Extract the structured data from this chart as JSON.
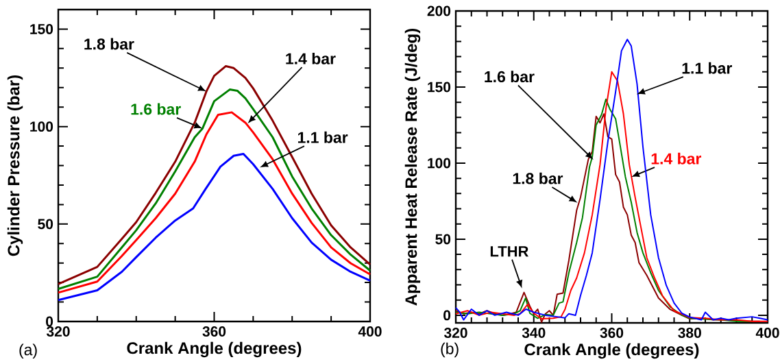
{
  "chart_data": [
    {
      "type": "line",
      "xlabel": "Crank Angle (degrees)",
      "ylabel": "Cylinder Pressure (bar)",
      "xlim": [
        320,
        400
      ],
      "ylim": [
        0,
        160
      ],
      "xticks": [
        320,
        {
          "value": 330,
          "label": null
        },
        {
          "value": 340,
          "label": null
        },
        {
          "value": 350,
          "label": null
        },
        360,
        {
          "value": 370,
          "label": null
        },
        {
          "value": 380,
          "label": null
        },
        {
          "value": 390,
          "label": null
        },
        400
      ],
      "yticks": [
        0,
        {
          "value": 10,
          "label": null
        },
        {
          "value": 20,
          "label": null
        },
        {
          "value": 30,
          "label": null
        },
        {
          "value": 40,
          "label": null
        },
        50,
        {
          "value": 60,
          "label": null
        },
        {
          "value": 70,
          "label": null
        },
        {
          "value": 80,
          "label": null
        },
        {
          "value": 90,
          "label": null
        },
        100,
        {
          "value": 110,
          "label": null
        },
        {
          "value": 120,
          "label": null
        },
        {
          "value": 130,
          "label": null
        },
        {
          "value": 140,
          "label": null
        },
        150
      ],
      "series": [
        {
          "name": "1.8 bar",
          "color": "#8b0000",
          "x": [
            320,
            330,
            336.3,
            340,
            345,
            350,
            355,
            358,
            360,
            363,
            365,
            368,
            370,
            375,
            380,
            385,
            390,
            395,
            400
          ],
          "values": [
            19.2,
            28,
            42.4,
            51,
            66,
            82,
            102,
            118,
            126,
            131,
            130,
            125,
            119.6,
            103,
            84.4,
            65.6,
            49.3,
            38,
            29.2
          ]
        },
        {
          "name": "1.6 bar",
          "color": "#008000",
          "x": [
            320,
            330,
            336.3,
            340,
            345,
            350,
            355,
            357,
            360,
            364,
            366,
            368,
            370,
            375,
            380,
            385,
            390,
            395,
            400
          ],
          "values": [
            16.7,
            23,
            38,
            46.8,
            60.6,
            77,
            94.5,
            99,
            113,
            119,
            118.3,
            114.5,
            109,
            94.5,
            74.4,
            58,
            44.3,
            34.3,
            26.1
          ]
        },
        {
          "name": "1.4 bar",
          "color": "#ff0000",
          "x": [
            320,
            330,
            336.3,
            340,
            345,
            350,
            355,
            358,
            361,
            364.5,
            368,
            370,
            375,
            380,
            385,
            390,
            395,
            400
          ],
          "values": [
            14.8,
            20.5,
            33.6,
            41.8,
            53,
            65.6,
            82,
            96,
            106,
            107.3,
            102,
            97,
            83.2,
            65.6,
            50.6,
            38,
            29.9,
            24.2
          ]
        },
        {
          "name": "1.1 bar",
          "color": "#0000ff",
          "x": [
            320,
            330,
            336.3,
            340,
            345,
            350,
            354.6,
            357.8,
            361.6,
            365,
            367.5,
            370,
            375,
            380,
            385,
            390,
            395,
            400
          ],
          "values": [
            11,
            16,
            25.5,
            33,
            43,
            51.8,
            58,
            68,
            79.4,
            85,
            86,
            80.7,
            68,
            53,
            40.5,
            31.7,
            25.5,
            21
          ]
        }
      ],
      "annotations": [
        "(a)"
      ]
    },
    {
      "type": "line",
      "xlabel": "Crank Angle (degrees)",
      "ylabel": "Apparent Heat Release Rate (J/deg)",
      "xlim": [
        320,
        400
      ],
      "ylim": [
        -5,
        200
      ],
      "xticks": [
        320,
        {
          "value": 324,
          "label": null
        },
        {
          "value": 328,
          "label": null
        },
        {
          "value": 332,
          "label": null
        },
        {
          "value": 336,
          "label": null
        },
        340,
        {
          "value": 344,
          "label": null
        },
        {
          "value": 348,
          "label": null
        },
        {
          "value": 352,
          "label": null
        },
        {
          "value": 356,
          "label": null
        },
        360,
        {
          "value": 364,
          "label": null
        },
        {
          "value": 368,
          "label": null
        },
        {
          "value": 372,
          "label": null
        },
        {
          "value": 376,
          "label": null
        },
        380,
        {
          "value": 384,
          "label": null
        },
        {
          "value": 388,
          "label": null
        },
        {
          "value": 392,
          "label": null
        },
        {
          "value": 396,
          "label": null
        },
        400
      ],
      "yticks": [
        0,
        {
          "value": 10,
          "label": null
        },
        {
          "value": 20,
          "label": null
        },
        {
          "value": 30,
          "label": null
        },
        {
          "value": 40,
          "label": null
        },
        50,
        {
          "value": 60,
          "label": null
        },
        {
          "value": 70,
          "label": null
        },
        {
          "value": 80,
          "label": null
        },
        {
          "value": 90,
          "label": null
        },
        100,
        {
          "value": 110,
          "label": null
        },
        {
          "value": 120,
          "label": null
        },
        {
          "value": 130,
          "label": null
        },
        {
          "value": 140,
          "label": null
        },
        150,
        {
          "value": 160,
          "label": null
        },
        {
          "value": 170,
          "label": null
        },
        {
          "value": 180,
          "label": null
        },
        {
          "value": 190,
          "label": null
        },
        200
      ],
      "series": [
        {
          "name": "1.8 bar",
          "color": "#8b0000",
          "x": [
            320,
            322,
            324,
            326,
            328,
            330,
            332,
            334,
            335.5,
            337.5,
            339,
            340,
            341,
            342,
            343,
            344,
            345,
            346,
            347.5,
            349,
            351,
            352,
            354,
            355,
            356,
            357,
            358,
            359,
            360,
            361,
            362,
            363,
            364,
            365,
            366,
            367,
            369,
            372,
            375,
            378,
            380,
            383,
            386,
            389,
            392,
            394,
            396,
            398
          ],
          "values": [
            3,
            1,
            2,
            1,
            3,
            1,
            0,
            1,
            2,
            15,
            6,
            1,
            4,
            -4.5,
            1,
            3,
            0,
            13.8,
            14.6,
            36,
            69,
            77.6,
            102.5,
            107.5,
            130.7,
            126.5,
            132.3,
            117.4,
            115.8,
            92.5,
            87.6,
            71,
            66,
            52.7,
            47.8,
            34.5,
            26.2,
            11.3,
            3.8,
            0,
            -2.3,
            -2,
            -3,
            -3,
            null,
            -4,
            null,
            -4
          ]
        },
        {
          "name": "1.6 bar",
          "color": "#008000",
          "x": [
            320,
            323,
            326,
            329,
            332,
            335,
            336.5,
            337.9,
            339,
            341,
            343,
            345,
            346.5,
            347.5,
            349,
            351,
            352.5,
            354.3,
            355,
            356,
            357.4,
            358.5,
            359.5,
            361,
            362,
            363.5,
            365,
            366.5,
            368,
            370,
            372,
            375,
            378,
            380,
            384,
            388,
            392,
            396
          ],
          "values": [
            2,
            1,
            2,
            1,
            0,
            1,
            3,
            11.3,
            1.3,
            -2,
            0.5,
            0,
            8,
            8.8,
            27.9,
            47.8,
            64.3,
            97.5,
            104,
            125,
            132,
            142,
            135.6,
            129,
            114,
            91,
            74.3,
            54.4,
            41,
            27.9,
            16.3,
            5.5,
            0,
            -2,
            -2.5,
            -3,
            -4,
            -4
          ]
        },
        {
          "name": "1.4 bar",
          "color": "#ff0000",
          "x": [
            320,
            323,
            326,
            329,
            332,
            335,
            336.5,
            338.4,
            340,
            342,
            345,
            347,
            348,
            349.5,
            351,
            353,
            355,
            357,
            358.5,
            360,
            361.5,
            363,
            364.5,
            366,
            367.5,
            369,
            371,
            373,
            376,
            380,
            384,
            388,
            392,
            396,
            400
          ],
          "values": [
            1,
            3,
            0,
            2,
            1,
            0,
            1,
            7.1,
            1.3,
            -2.3,
            -2,
            -1,
            3.8,
            16.3,
            24.5,
            41,
            66,
            99,
            135.6,
            160,
            153.9,
            132.3,
            99,
            77.6,
            57.7,
            37.8,
            24.5,
            12.9,
            3,
            -1.5,
            -2,
            -3,
            -3,
            -4,
            -4
          ]
        },
        {
          "name": "1.1 bar",
          "color": "#0000ff",
          "x": [
            320,
            321,
            322,
            324,
            326,
            328,
            330,
            333,
            336,
            338,
            340,
            343,
            346,
            348,
            349,
            350.7,
            352,
            353.5,
            355,
            357,
            359,
            361,
            362.5,
            364,
            365,
            366.5,
            368,
            370,
            372,
            374,
            376,
            378,
            380,
            383,
            384,
            386,
            388,
            390,
            392,
            394,
            396,
            397,
            398,
            400
          ],
          "values": [
            5,
            2,
            -3,
            4,
            0,
            3,
            0,
            2,
            0,
            4,
            2,
            0,
            -1,
            -1.7,
            1,
            0,
            13,
            26.2,
            41,
            76,
            114,
            147,
            173.8,
            181.3,
            177,
            152,
            110.8,
            66,
            37.8,
            19.6,
            8,
            1.3,
            -1.2,
            -3,
            2,
            -3,
            -2,
            -3,
            -2,
            null,
            -1,
            null,
            -2,
            -3
          ]
        }
      ],
      "annotations": [
        "(b)",
        {
          "text": "LTHR",
          "x": 337.2,
          "y": 16
        }
      ]
    }
  ]
}
